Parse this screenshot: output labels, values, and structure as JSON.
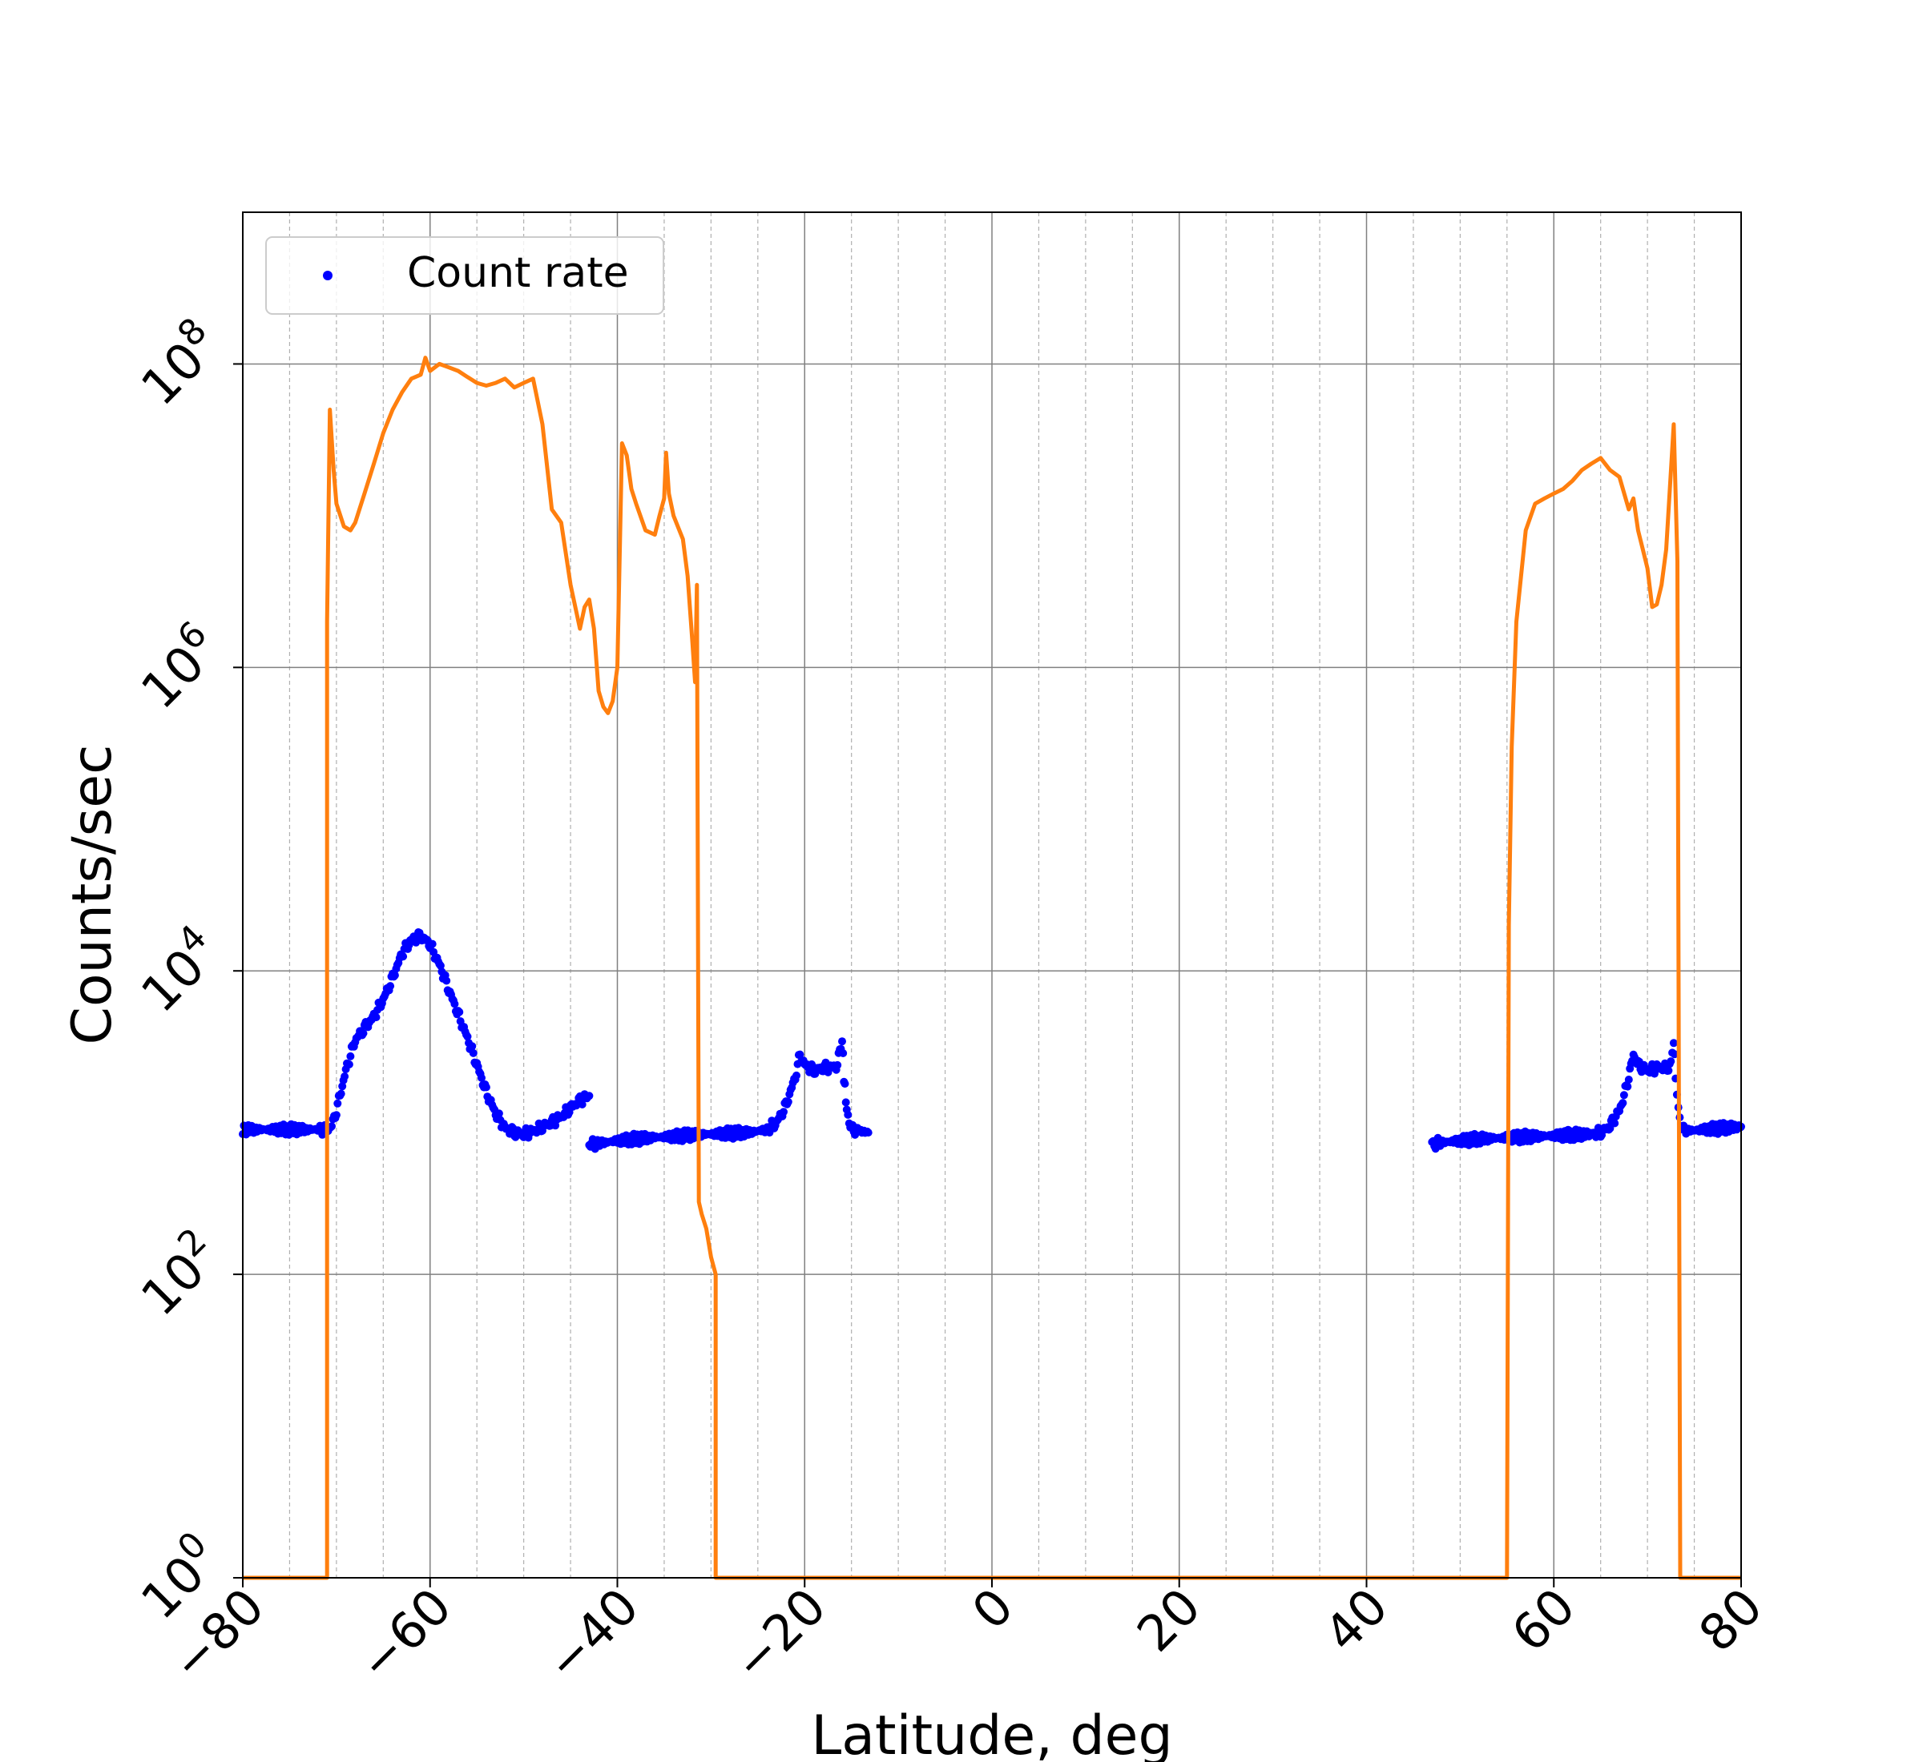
{
  "chart_data": {
    "type": "scatter",
    "xlabel": "Latitude, deg",
    "ylabel": "Counts/sec",
    "xlim": [
      -80,
      80
    ],
    "ylim": [
      1,
      1000000000
    ],
    "y_scale": "log",
    "grid": true,
    "minor_grid_x": true,
    "legend_position": "top-left",
    "x_ticks": [
      -80,
      -60,
      -40,
      -20,
      0,
      20,
      40,
      60,
      80
    ],
    "x_tick_labels": [
      "−80",
      "−60",
      "−40",
      "−20",
      "0",
      "20",
      "40",
      "60",
      "80"
    ],
    "y_ticks": [
      {
        "value": 1,
        "base": "10",
        "exp": "0"
      },
      {
        "value": 100,
        "base": "10",
        "exp": "2"
      },
      {
        "value": 10000,
        "base": "10",
        "exp": "4"
      },
      {
        "value": 1000000,
        "base": "10",
        "exp": "6"
      },
      {
        "value": 100000000,
        "base": "10",
        "exp": "8"
      }
    ],
    "series": [
      {
        "name": "Count rate",
        "kind": "scatter",
        "color": "#0000ff",
        "segments": [
          [
            [
              -80,
              900
            ],
            [
              -78,
              900
            ],
            [
              -76,
              900
            ],
            [
              -74,
              900
            ],
            [
              -72,
              900
            ],
            [
              -71,
              900
            ],
            [
              -70.5,
              950
            ],
            [
              -70,
              1200
            ],
            [
              -69,
              2200
            ],
            [
              -68,
              3500
            ],
            [
              -67,
              4200
            ],
            [
              -66,
              5000
            ],
            [
              -65,
              6500
            ],
            [
              -64,
              9000
            ],
            [
              -63,
              13000
            ],
            [
              -62,
              16000
            ],
            [
              -61,
              17000
            ],
            [
              -60,
              15000
            ],
            [
              -59,
              11000
            ],
            [
              -58,
              7500
            ],
            [
              -57,
              5200
            ],
            [
              -56,
              3600
            ],
            [
              -55,
              2400
            ],
            [
              -54,
              1600
            ],
            [
              -53,
              1150
            ],
            [
              -52,
              920
            ],
            [
              -51,
              860
            ],
            [
              -50,
              840
            ],
            [
              -49,
              880
            ],
            [
              -48,
              940
            ],
            [
              -47,
              1000
            ],
            [
              -46,
              1100
            ],
            [
              -45,
              1250
            ],
            [
              -44,
              1400
            ],
            [
              -43,
              1500
            ]
          ],
          [
            [
              -43,
              720
            ],
            [
              -42,
              730
            ],
            [
              -40,
              760
            ],
            [
              -38,
              780
            ],
            [
              -36,
              800
            ],
            [
              -34,
              810
            ],
            [
              -32,
              830
            ],
            [
              -30,
              840
            ],
            [
              -28,
              850
            ],
            [
              -26,
              860
            ],
            [
              -24,
              900
            ],
            [
              -23,
              1000
            ],
            [
              -22,
              1300
            ],
            [
              -21,
              2000
            ],
            [
              -20.5,
              2800
            ],
            [
              -20,
              2400
            ],
            [
              -19,
              2200
            ],
            [
              -18,
              2300
            ],
            [
              -17,
              2300
            ],
            [
              -16.5,
              2400
            ],
            [
              -16,
              3600
            ],
            [
              -15.8,
              2000
            ],
            [
              -15.5,
              1200
            ],
            [
              -15,
              900
            ],
            [
              -14,
              880
            ],
            [
              -13.2,
              860
            ]
          ],
          [
            [
              47,
              720
            ],
            [
              48,
              740
            ],
            [
              50,
              760
            ],
            [
              52,
              780
            ],
            [
              54,
              790
            ],
            [
              56,
              800
            ],
            [
              58,
              810
            ],
            [
              60,
              820
            ],
            [
              62,
              830
            ],
            [
              64,
              840
            ],
            [
              65,
              860
            ],
            [
              66,
              950
            ],
            [
              67,
              1200
            ],
            [
              67.5,
              1500
            ],
            [
              68,
              2000
            ],
            [
              68.5,
              2800
            ],
            [
              69,
              2400
            ],
            [
              70,
              2200
            ],
            [
              71,
              2300
            ],
            [
              72,
              2300
            ],
            [
              72.5,
              2400
            ],
            [
              72.8,
              3600
            ],
            [
              73,
              2000
            ],
            [
              73.3,
              1300
            ],
            [
              73.6,
              900
            ],
            [
              74,
              880
            ],
            [
              76,
              900
            ],
            [
              78,
              920
            ],
            [
              80,
              940
            ]
          ]
        ]
      },
      {
        "name": "",
        "kind": "line",
        "color": "#ff7f0e",
        "segments": [
          [
            [
              -80,
              1
            ],
            [
              -71,
              1
            ],
            [
              -71,
              2000000
            ],
            [
              -70.7,
              50000000
            ],
            [
              -70.3,
              20000000
            ],
            [
              -70,
              12000000
            ],
            [
              -69.2,
              8500000
            ],
            [
              -68.5,
              8000000
            ],
            [
              -68,
              9000000
            ],
            [
              -67,
              14000000
            ],
            [
              -66,
              22000000
            ],
            [
              -65,
              35000000
            ],
            [
              -64,
              50000000
            ],
            [
              -63,
              65000000
            ],
            [
              -62,
              80000000
            ],
            [
              -61,
              85000000
            ],
            [
              -60.5,
              110000000
            ],
            [
              -60,
              90000000
            ],
            [
              -59,
              100000000
            ],
            [
              -58,
              95000000
            ],
            [
              -57,
              90000000
            ],
            [
              -56,
              82000000
            ],
            [
              -55,
              75000000
            ],
            [
              -54,
              72000000
            ],
            [
              -53,
              75000000
            ],
            [
              -52,
              80000000
            ],
            [
              -51,
              70000000
            ],
            [
              -50,
              75000000
            ],
            [
              -49,
              80000000
            ],
            [
              -48,
              40000000
            ],
            [
              -47,
              11000000
            ],
            [
              -46,
              9000000
            ],
            [
              -45,
              3500000
            ],
            [
              -44,
              1800000
            ],
            [
              -43.5,
              2500000
            ],
            [
              -43,
              2800000
            ],
            [
              -42.5,
              1800000
            ],
            [
              -42,
              700000
            ],
            [
              -41.5,
              550000
            ],
            [
              -41,
              500000
            ],
            [
              -40.5,
              600000
            ],
            [
              -40,
              1000000
            ],
            [
              -39.5,
              30000000
            ],
            [
              -39,
              25000000
            ],
            [
              -38.5,
              15000000
            ],
            [
              -38,
              12000000
            ],
            [
              -37,
              8000000
            ],
            [
              -36,
              7500000
            ],
            [
              -35.5,
              10000000
            ],
            [
              -35,
              13000000
            ],
            [
              -34.8,
              26000000
            ],
            [
              -34.5,
              14000000
            ],
            [
              -34,
              10000000
            ],
            [
              -33,
              7000000
            ],
            [
              -32.5,
              4000000
            ],
            [
              -32,
              1500000
            ],
            [
              -31.7,
              800000
            ],
            [
              -31.5,
              3500000
            ],
            [
              -31.3,
              300
            ],
            [
              -31,
              250
            ],
            [
              -30.5,
              200
            ],
            [
              -30,
              130
            ],
            [
              -29.5,
              100
            ],
            [
              -29.5,
              1
            ],
            [
              55,
              1
            ],
            [
              55.2,
              20000
            ],
            [
              55.5,
              300000
            ],
            [
              56,
              2000000
            ],
            [
              57,
              8000000
            ],
            [
              58,
              12000000
            ],
            [
              59,
              13000000
            ],
            [
              60,
              14000000
            ],
            [
              61,
              15000000
            ],
            [
              62,
              17000000
            ],
            [
              63,
              20000000
            ],
            [
              64,
              22000000
            ],
            [
              65,
              24000000
            ],
            [
              66,
              20000000
            ],
            [
              67,
              18000000
            ],
            [
              68,
              11000000
            ],
            [
              68.5,
              13000000
            ],
            [
              69,
              8000000
            ],
            [
              69.5,
              6000000
            ],
            [
              70,
              4500000
            ],
            [
              70.5,
              2500000
            ],
            [
              71,
              2600000
            ],
            [
              71.5,
              3500000
            ],
            [
              72,
              6000000
            ],
            [
              72.8,
              40000000
            ],
            [
              73.2,
              5000000
            ],
            [
              73.5,
              1
            ],
            [
              80,
              1
            ]
          ]
        ]
      }
    ]
  }
}
